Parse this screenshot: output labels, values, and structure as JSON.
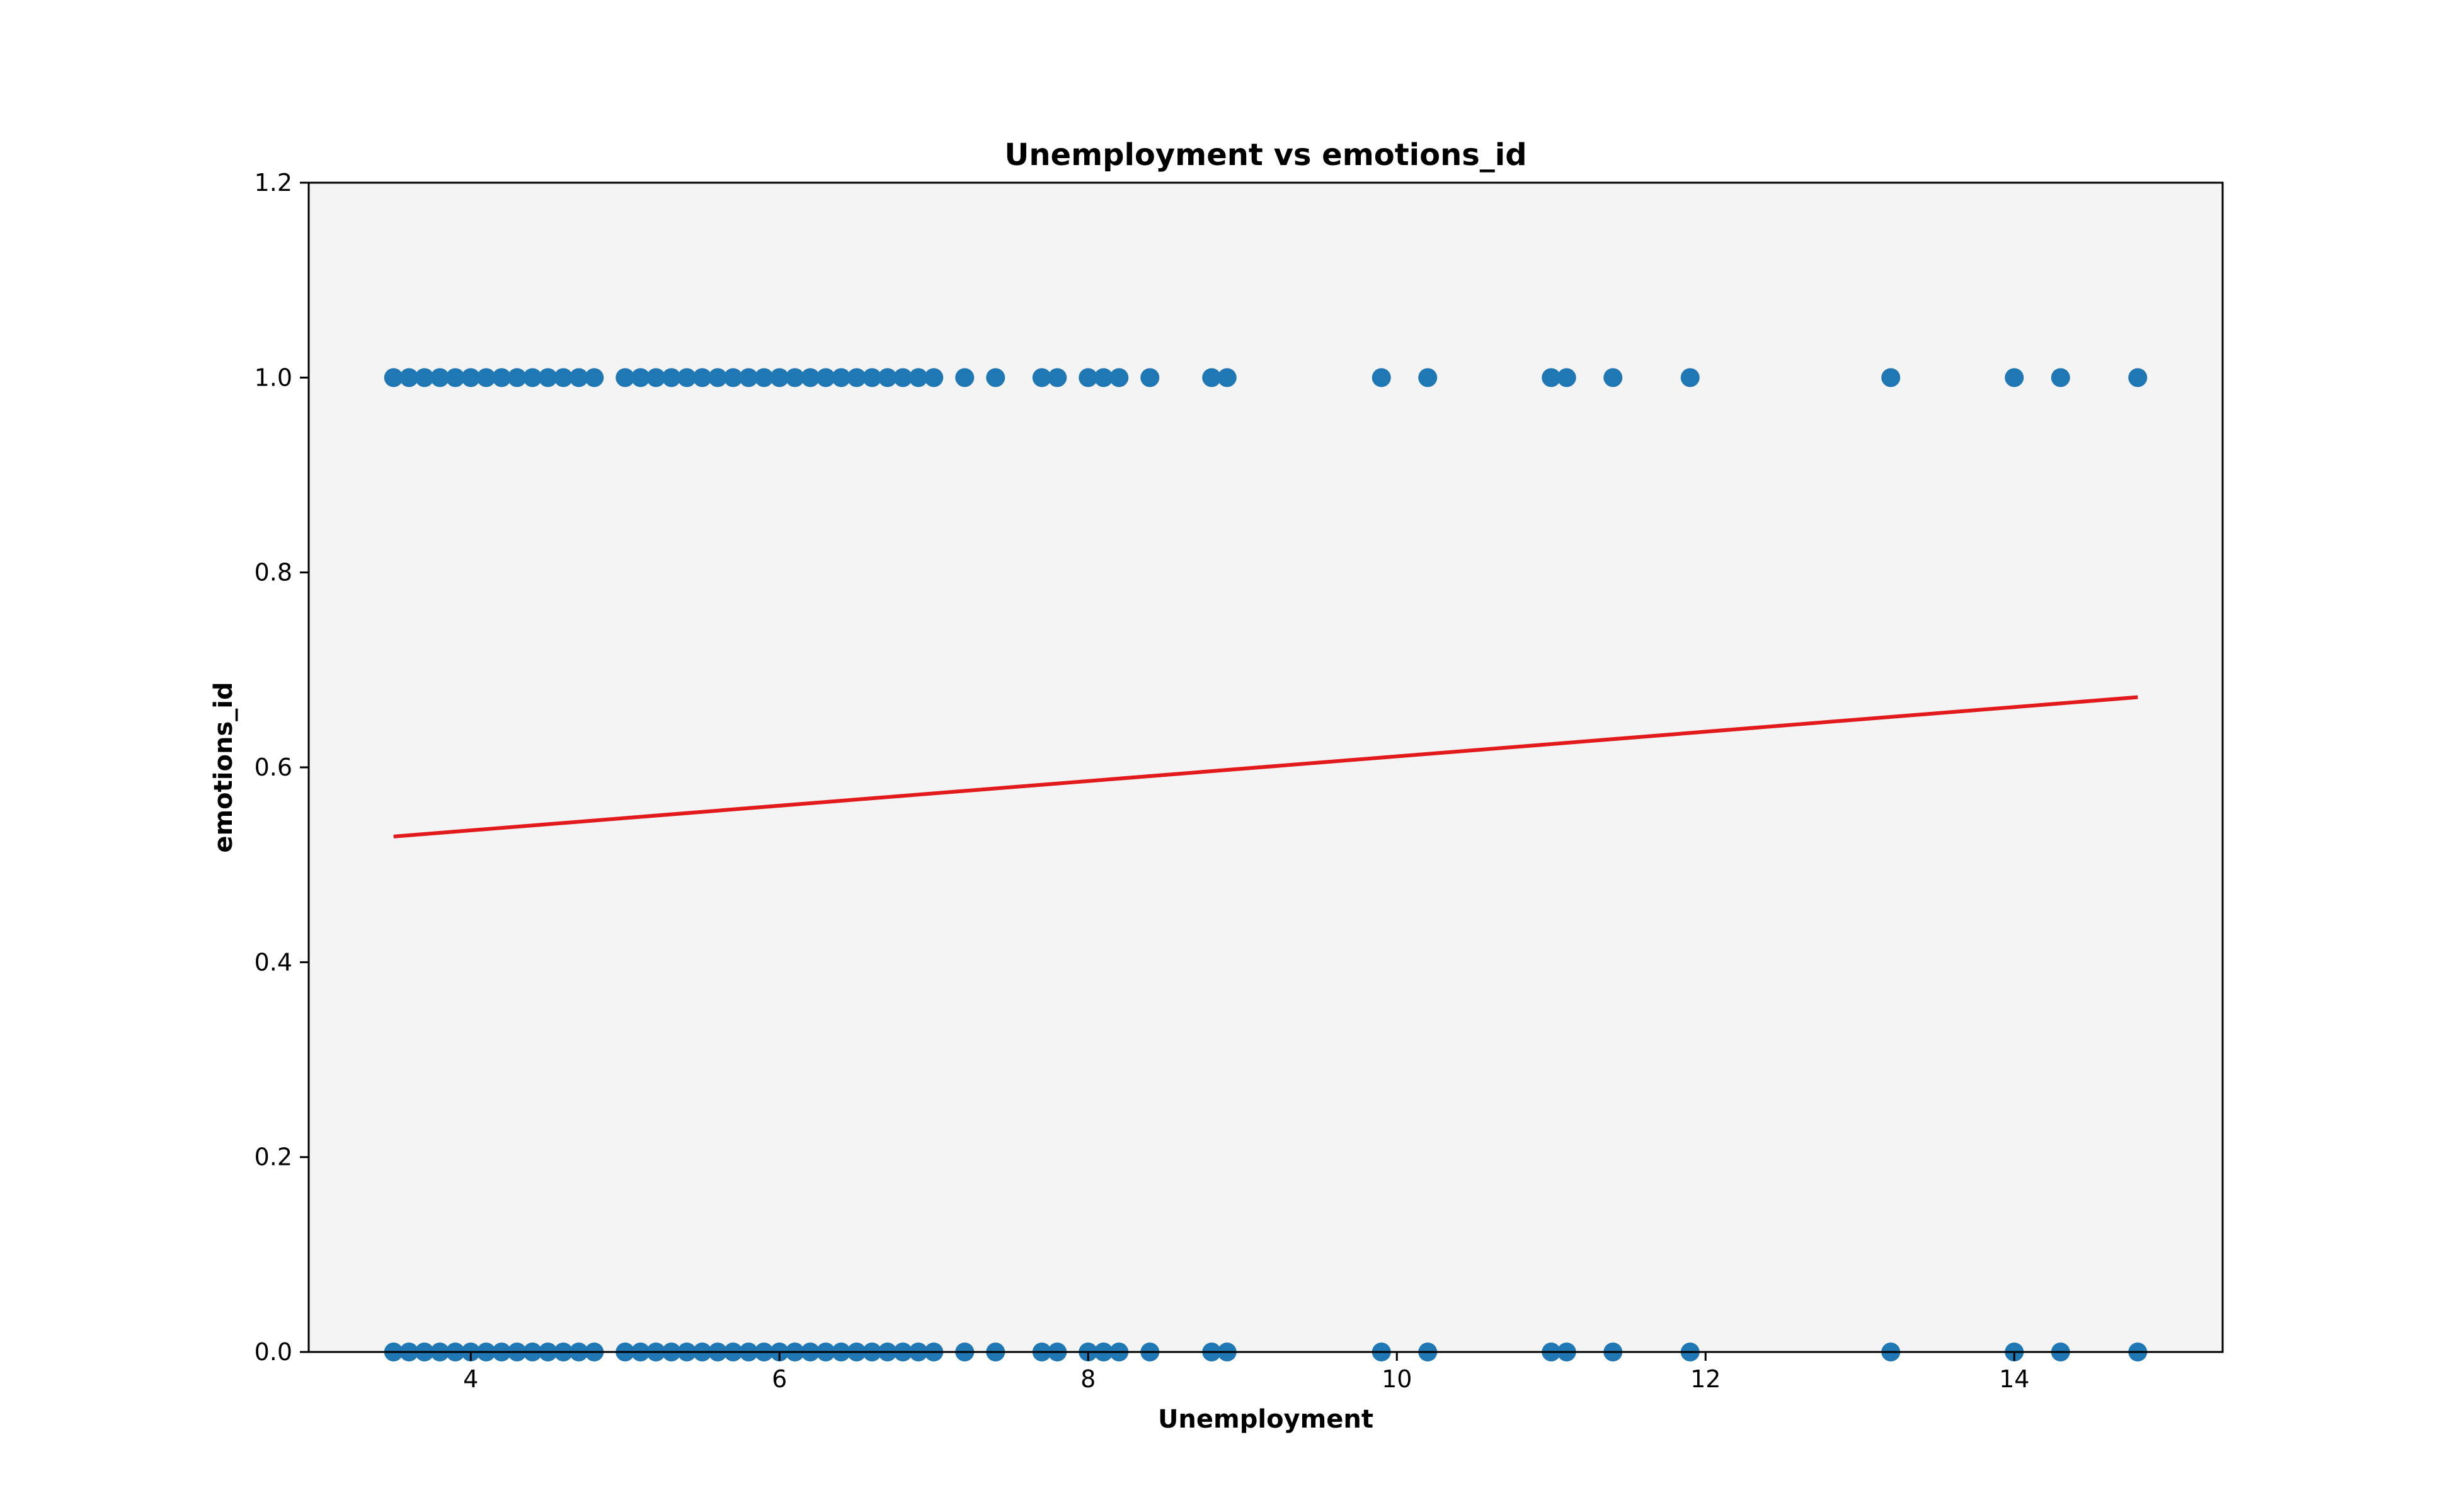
{
  "chart_data": {
    "type": "scatter",
    "title": "Unemployment vs emotions_id",
    "xlabel": "Unemployment",
    "ylabel": "emotions_id",
    "xlim": [
      2.95,
      15.35
    ],
    "ylim": [
      0,
      1.2
    ],
    "xticks": [
      4,
      6,
      8,
      10,
      12,
      14
    ],
    "yticks": [
      0.0,
      0.2,
      0.4,
      0.6,
      0.8,
      1.0,
      1.2
    ],
    "xtick_labels": [
      "4",
      "6",
      "8",
      "10",
      "12",
      "14"
    ],
    "ytick_labels": [
      "0.0",
      "0.2",
      "0.4",
      "0.6",
      "0.8",
      "1.0",
      "1.2"
    ],
    "grid": false,
    "background": "#f4f4f4",
    "series": [
      {
        "kind": "scatter",
        "color": "#1f77b4",
        "x": [
          3.5,
          3.6,
          3.7,
          3.8,
          3.9,
          4.0,
          4.1,
          4.2,
          4.3,
          4.4,
          4.5,
          4.6,
          4.7,
          4.8,
          5.0,
          5.1,
          5.2,
          5.3,
          5.4,
          5.5,
          5.6,
          5.7,
          5.8,
          5.9,
          6.0,
          6.1,
          6.2,
          6.3,
          6.4,
          6.5,
          6.6,
          6.7,
          6.8,
          6.9,
          7.0,
          7.2,
          7.4,
          7.7,
          7.8,
          8.0,
          8.1,
          8.2,
          8.4,
          8.8,
          8.9,
          9.9,
          10.2,
          11.0,
          11.1,
          11.4,
          11.9,
          13.2,
          14.0,
          14.3,
          14.8,
          3.5,
          3.6,
          3.7,
          3.8,
          3.9,
          4.0,
          4.1,
          4.2,
          4.3,
          4.4,
          4.5,
          4.6,
          4.7,
          4.8,
          5.0,
          5.1,
          5.2,
          5.3,
          5.4,
          5.5,
          5.6,
          5.7,
          5.8,
          5.9,
          6.0,
          6.1,
          6.2,
          6.3,
          6.4,
          6.5,
          6.6,
          6.7,
          6.8,
          6.9,
          7.0,
          7.2,
          7.4,
          7.7,
          7.8,
          8.0,
          8.1,
          8.2,
          8.4,
          8.8,
          8.9,
          9.9,
          10.2,
          11.0,
          11.1,
          11.4,
          11.9,
          13.2,
          14.0,
          14.3,
          14.8
        ],
        "y": [
          1,
          1,
          1,
          1,
          1,
          1,
          1,
          1,
          1,
          1,
          1,
          1,
          1,
          1,
          1,
          1,
          1,
          1,
          1,
          1,
          1,
          1,
          1,
          1,
          1,
          1,
          1,
          1,
          1,
          1,
          1,
          1,
          1,
          1,
          1,
          1,
          1,
          1,
          1,
          1,
          1,
          1,
          1,
          1,
          1,
          1,
          1,
          1,
          1,
          1,
          1,
          1,
          1,
          1,
          1,
          0,
          0,
          0,
          0,
          0,
          0,
          0,
          0,
          0,
          0,
          0,
          0,
          0,
          0,
          0,
          0,
          0,
          0,
          0,
          0,
          0,
          0,
          0,
          0,
          0,
          0,
          0,
          0,
          0,
          0,
          0,
          0,
          0,
          0,
          0,
          0,
          0,
          0,
          0,
          0,
          0,
          0,
          0,
          0,
          0,
          0,
          0,
          0,
          0,
          0,
          0,
          0,
          0,
          0,
          0
        ]
      },
      {
        "kind": "line",
        "color": "#e31a1c",
        "x": [
          3.5,
          14.8
        ],
        "y": [
          0.529,
          0.672
        ]
      }
    ]
  }
}
